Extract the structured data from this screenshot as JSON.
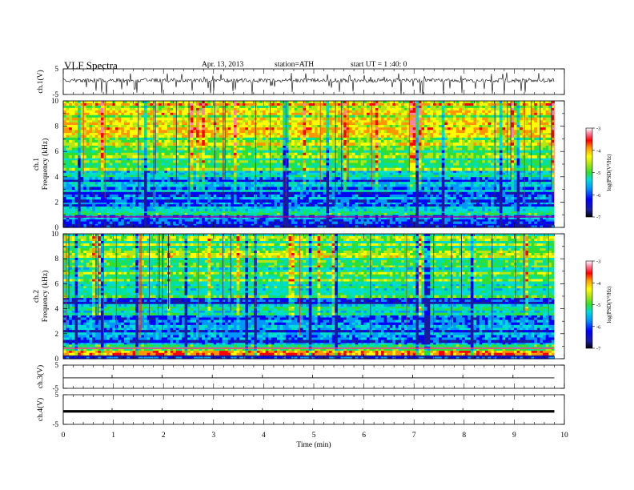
{
  "header": {
    "title": "VLF  Spectra",
    "date": "Apr. 13, 2013",
    "station": "station=ATH",
    "start": "start  UT  =   1 :40: 0"
  },
  "chart_data": [
    {
      "type": "line",
      "ylabel": "ch.1(V)",
      "y_ticks": [
        "5",
        "-5"
      ],
      "ylim": [
        -5,
        5
      ],
      "description_level": "noisy trace near +0.5 V with frequent spikes down to about -3 V"
    },
    {
      "type": "heatmap",
      "ylabel_lines": [
        "ch.1",
        "Frequency  (kHz)"
      ],
      "y_ticks": [
        "0",
        "2",
        "4",
        "6",
        "8",
        "10"
      ],
      "ylim": [
        0,
        10
      ],
      "colorbar": {
        "label": "log(PSD(V²/Hz)",
        "ticks": [
          "-3",
          "-4",
          "-5",
          "-6",
          "-7"
        ],
        "range": [
          -7,
          -3
        ]
      },
      "bands_khz_to_log_psd": [
        [
          0,
          0.3,
          -6.8
        ],
        [
          0.3,
          0.8,
          -6.2
        ],
        [
          0.8,
          1.3,
          -5.6
        ],
        [
          1.3,
          2.0,
          -5.9
        ],
        [
          2.0,
          3.0,
          -6.1
        ],
        [
          3.0,
          3.8,
          -6.0
        ],
        [
          3.8,
          4.5,
          -5.4
        ],
        [
          4.5,
          5.5,
          -5.0
        ],
        [
          5.5,
          6.5,
          -4.7
        ],
        [
          6.5,
          7.5,
          -4.5
        ],
        [
          7.5,
          8.5,
          -4.3
        ],
        [
          8.5,
          10.0,
          -4.2
        ]
      ]
    },
    {
      "type": "heatmap",
      "ylabel_lines": [
        "ch.2",
        "Frequency  (kHz)"
      ],
      "y_ticks": [
        "0",
        "2",
        "4",
        "6",
        "8",
        "10"
      ],
      "ylim": [
        0,
        10
      ],
      "colorbar": {
        "label": "log(PSD(V²/Hz)",
        "ticks": [
          "-3",
          "-4",
          "-5",
          "-6",
          "-7"
        ],
        "range": [
          -7,
          -3
        ]
      },
      "bands_khz_to_log_psd": [
        [
          0,
          0.3,
          -6.9
        ],
        [
          0.3,
          0.8,
          -4.2
        ],
        [
          0.8,
          1.3,
          -5.5
        ],
        [
          1.3,
          2.5,
          -6.0
        ],
        [
          2.5,
          3.5,
          -5.8
        ],
        [
          3.5,
          4.2,
          -5.5
        ],
        [
          4.2,
          4.9,
          -6.3
        ],
        [
          4.9,
          6.0,
          -5.3
        ],
        [
          6.0,
          7.5,
          -5.0
        ],
        [
          7.5,
          10.0,
          -4.8
        ]
      ]
    },
    {
      "type": "line",
      "ylabel": "ch.3(V)",
      "y_ticks": [
        "5",
        "-5"
      ],
      "ylim": [
        -5,
        5
      ],
      "level": -0.5
    },
    {
      "type": "line",
      "ylabel": "ch.4(V)",
      "y_ticks": [
        "5",
        "-5"
      ],
      "ylim": [
        -5,
        5
      ],
      "level": -0.6
    }
  ],
  "x_axis": {
    "label": "Time  (min)",
    "ticks": [
      "0",
      "1",
      "2",
      "3",
      "4",
      "5",
      "6",
      "7",
      "8",
      "9",
      "10"
    ],
    "range": [
      0,
      10
    ],
    "data_end": 9.8
  },
  "colors": {
    "scale": [
      "#000000",
      "#1a1aa0",
      "#0000ff",
      "#0096ff",
      "#00dcdc",
      "#00e0a0",
      "#30e030",
      "#b4e614",
      "#ffff00",
      "#ff9600",
      "#ff0000",
      "#ff80a0",
      "#ffffff"
    ]
  }
}
